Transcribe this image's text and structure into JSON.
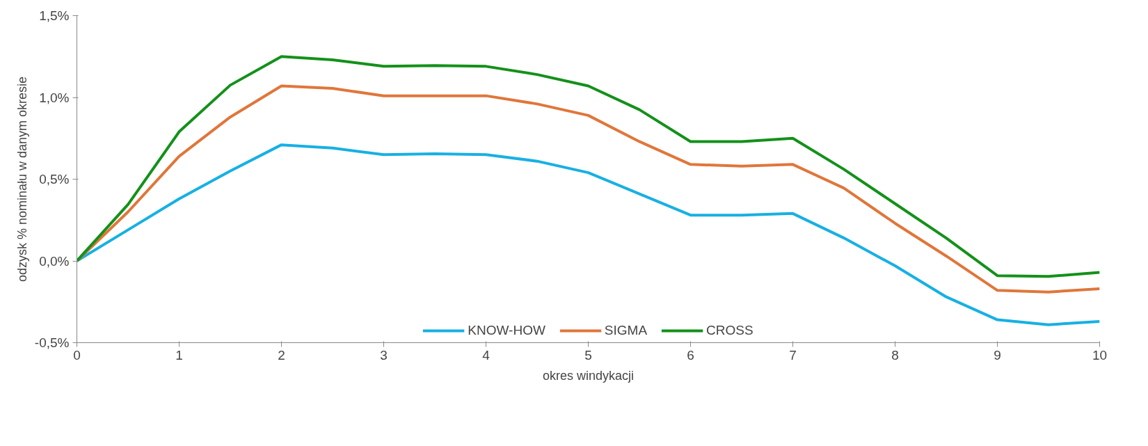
{
  "chart_data": {
    "type": "line",
    "xlabel": "okres windykacji",
    "ylabel": "odzysk % nominału w danym okresie",
    "x": [
      0,
      0.5,
      1,
      1.5,
      2,
      2.5,
      3,
      3.5,
      4,
      4.5,
      5,
      5.5,
      6,
      6.5,
      7,
      7.5,
      8,
      8.5,
      9,
      9.5,
      10
    ],
    "series": [
      {
        "name": "KNOW-HOW",
        "color": "#17b0e3",
        "values": [
          0,
          0.19,
          0.38,
          0.55,
          0.71,
          0.69,
          0.65,
          0.655,
          0.65,
          0.61,
          0.54,
          0.41,
          0.28,
          0.28,
          0.29,
          0.14,
          -0.03,
          -0.22,
          -0.36,
          -0.39,
          -0.37
        ]
      },
      {
        "name": "SIGMA",
        "color": "#e0763a",
        "values": [
          0,
          0.3,
          0.64,
          0.88,
          1.07,
          1.055,
          1.01,
          1.01,
          1.01,
          0.96,
          0.89,
          0.73,
          0.59,
          0.58,
          0.59,
          0.445,
          0.23,
          0.03,
          -0.18,
          -0.19,
          -0.17
        ]
      },
      {
        "name": "CROSS",
        "color": "#13911a",
        "values": [
          0,
          0.345,
          0.79,
          1.075,
          1.25,
          1.23,
          1.19,
          1.195,
          1.19,
          1.14,
          1.07,
          0.925,
          0.73,
          0.73,
          0.75,
          0.56,
          0.35,
          0.14,
          -0.09,
          -0.095,
          -0.07
        ]
      }
    ],
    "xlim": [
      0,
      10
    ],
    "xticks": [
      0,
      1,
      2,
      3,
      4,
      5,
      6,
      7,
      8,
      9,
      10
    ],
    "ylim": [
      -0.5,
      1.5
    ],
    "yticks": [
      {
        "value": -0.5,
        "label": "-0,5%"
      },
      {
        "value": 0,
        "label": "0,0%"
      },
      {
        "value": 0.5,
        "label": "0,5%"
      },
      {
        "value": 1.0,
        "label": "1,0%"
      },
      {
        "value": 1.5,
        "label": "1,5%"
      }
    ],
    "grid": false,
    "legend": "bottom",
    "marker": "none",
    "line_style": "solid"
  }
}
